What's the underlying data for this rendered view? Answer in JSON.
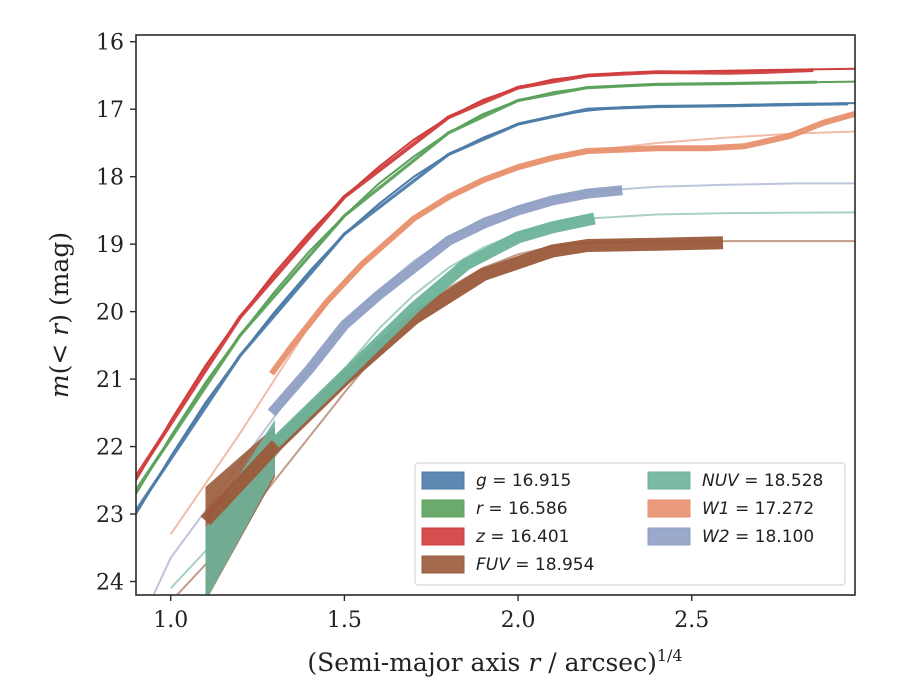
{
  "chart_data": {
    "type": "line",
    "xlabel": "(Semi-major axis r / arcsec)^1/4",
    "ylabel": "m(< r) (mag)",
    "xlim": [
      0.9,
      2.97
    ],
    "ylim": [
      24.2,
      15.9
    ],
    "y_inverted": true,
    "x_ticks": [
      "1.0",
      "1.5",
      "2.0",
      "2.5"
    ],
    "x_tick_values": [
      1.0,
      1.5,
      2.0,
      2.5
    ],
    "y_ticks": [
      "16",
      "17",
      "18",
      "19",
      "20",
      "21",
      "22",
      "23",
      "24"
    ],
    "y_tick_values": [
      16,
      17,
      18,
      19,
      20,
      21,
      22,
      23,
      24
    ],
    "grid": false,
    "legend_position": "lower-right",
    "series": [
      {
        "key": "g",
        "legend_var": "g",
        "legend_val": " = 16.915",
        "color": "#4c7ba8",
        "model": [
          [
            0.9,
            23.0
          ],
          [
            1.0,
            22.15
          ],
          [
            1.1,
            21.35
          ],
          [
            1.2,
            20.65
          ],
          [
            1.3,
            20.0
          ],
          [
            1.4,
            19.4
          ],
          [
            1.5,
            18.85
          ],
          [
            1.6,
            18.4
          ],
          [
            1.7,
            18.0
          ],
          [
            1.8,
            17.67
          ],
          [
            1.9,
            17.42
          ],
          [
            2.0,
            17.22
          ],
          [
            2.1,
            17.1
          ],
          [
            2.2,
            17.02
          ],
          [
            2.3,
            16.97
          ],
          [
            2.5,
            16.95
          ],
          [
            2.7,
            16.93
          ],
          [
            2.97,
            16.91
          ]
        ],
        "data": [
          [
            0.9,
            22.95
          ],
          [
            1.2,
            20.65
          ],
          [
            1.5,
            18.85
          ],
          [
            1.8,
            17.67
          ],
          [
            2.0,
            17.22
          ],
          [
            2.2,
            17.0
          ],
          [
            2.4,
            16.96
          ],
          [
            2.6,
            16.95
          ],
          [
            2.8,
            16.93
          ],
          [
            2.95,
            16.92
          ]
        ],
        "err_width": 1.2
      },
      {
        "key": "r",
        "legend_var": "r",
        "legend_val": " = 16.586",
        "color": "#5ba15b",
        "model": [
          [
            0.9,
            22.7
          ],
          [
            1.0,
            21.85
          ],
          [
            1.1,
            21.05
          ],
          [
            1.2,
            20.35
          ],
          [
            1.3,
            19.7
          ],
          [
            1.4,
            19.1
          ],
          [
            1.5,
            18.58
          ],
          [
            1.6,
            18.1
          ],
          [
            1.7,
            17.7
          ],
          [
            1.8,
            17.35
          ],
          [
            1.9,
            17.07
          ],
          [
            2.0,
            16.87
          ],
          [
            2.1,
            16.75
          ],
          [
            2.2,
            16.68
          ],
          [
            2.3,
            16.65
          ],
          [
            2.5,
            16.63
          ],
          [
            2.7,
            16.61
          ],
          [
            2.97,
            16.59
          ]
        ],
        "data": [
          [
            0.9,
            22.65
          ],
          [
            1.2,
            20.35
          ],
          [
            1.5,
            18.58
          ],
          [
            1.8,
            17.35
          ],
          [
            2.0,
            16.87
          ],
          [
            2.2,
            16.68
          ],
          [
            2.4,
            16.63
          ],
          [
            2.6,
            16.62
          ],
          [
            2.86,
            16.6
          ]
        ],
        "err_width": 1.2
      },
      {
        "key": "z",
        "legend_var": "z",
        "legend_val": " = 16.401",
        "color": "#d13c3c",
        "model": [
          [
            0.9,
            22.5
          ],
          [
            1.0,
            21.62
          ],
          [
            1.1,
            20.8
          ],
          [
            1.2,
            20.08
          ],
          [
            1.3,
            19.42
          ],
          [
            1.4,
            18.83
          ],
          [
            1.5,
            18.3
          ],
          [
            1.6,
            17.85
          ],
          [
            1.7,
            17.45
          ],
          [
            1.8,
            17.12
          ],
          [
            1.9,
            16.86
          ],
          [
            2.0,
            16.68
          ],
          [
            2.1,
            16.56
          ],
          [
            2.2,
            16.5
          ],
          [
            2.3,
            16.46
          ],
          [
            2.5,
            16.44
          ],
          [
            2.7,
            16.42
          ],
          [
            2.97,
            16.4
          ]
        ],
        "data": [
          [
            0.9,
            22.45
          ],
          [
            1.2,
            20.08
          ],
          [
            1.5,
            18.3
          ],
          [
            1.8,
            17.12
          ],
          [
            2.0,
            16.68
          ],
          [
            2.2,
            16.5
          ],
          [
            2.4,
            16.45
          ],
          [
            2.6,
            16.46
          ],
          [
            2.7,
            16.45
          ],
          [
            2.85,
            16.42
          ]
        ],
        "err_width": 1.8
      },
      {
        "key": "FUV",
        "legend_var": "FUV",
        "legend_val": " = 18.954",
        "color": "#9a5a3a",
        "model": [
          [
            1.0,
            24.3
          ],
          [
            1.1,
            23.75
          ],
          [
            1.2,
            23.15
          ],
          [
            1.3,
            22.5
          ],
          [
            1.4,
            21.85
          ],
          [
            1.5,
            21.2
          ],
          [
            1.6,
            20.58
          ],
          [
            1.7,
            20.05
          ],
          [
            1.8,
            19.65
          ],
          [
            1.9,
            19.35
          ],
          [
            2.0,
            19.15
          ],
          [
            2.1,
            19.03
          ],
          [
            2.2,
            18.98
          ],
          [
            2.4,
            18.96
          ],
          [
            2.6,
            18.955
          ],
          [
            2.97,
            18.954
          ]
        ],
        "data": [
          [
            1.1,
            23.1
          ],
          [
            1.3,
            22.0
          ],
          [
            1.5,
            21.0
          ],
          [
            1.7,
            20.1
          ],
          [
            1.9,
            19.45
          ],
          [
            2.1,
            19.1
          ],
          [
            2.2,
            19.02
          ],
          [
            2.4,
            19.0
          ],
          [
            2.59,
            18.98
          ]
        ],
        "err_width": 11,
        "wedge": [
          [
            1.1,
            22.6
          ],
          [
            1.1,
            24.3
          ],
          [
            1.3,
            22.45
          ],
          [
            1.3,
            21.7
          ]
        ]
      },
      {
        "key": "NUV",
        "legend_var": "NUV",
        "legend_val": " = 18.528",
        "color": "#6db39a",
        "model": [
          [
            1.0,
            24.1
          ],
          [
            1.1,
            23.55
          ],
          [
            1.2,
            22.85
          ],
          [
            1.3,
            22.15
          ],
          [
            1.4,
            21.48
          ],
          [
            1.5,
            20.85
          ],
          [
            1.6,
            20.25
          ],
          [
            1.7,
            19.75
          ],
          [
            1.8,
            19.35
          ],
          [
            1.9,
            19.05
          ],
          [
            2.0,
            18.84
          ],
          [
            2.1,
            18.7
          ],
          [
            2.2,
            18.62
          ],
          [
            2.4,
            18.56
          ],
          [
            2.6,
            18.54
          ],
          [
            2.97,
            18.53
          ]
        ],
        "data": [
          [
            1.3,
            21.95
          ],
          [
            1.5,
            20.95
          ],
          [
            1.7,
            19.95
          ],
          [
            1.85,
            19.3
          ],
          [
            2.0,
            18.9
          ],
          [
            2.1,
            18.75
          ],
          [
            2.22,
            18.62
          ]
        ],
        "err_width": 10,
        "wedge": [
          [
            1.1,
            23.2
          ],
          [
            1.1,
            24.3
          ],
          [
            1.3,
            22.4
          ],
          [
            1.3,
            21.6
          ]
        ]
      },
      {
        "key": "W1",
        "legend_var": "W1",
        "legend_val": " = 17.272",
        "color": "#e8906e",
        "model": [
          [
            1.0,
            23.3
          ],
          [
            1.1,
            22.55
          ],
          [
            1.2,
            21.8
          ],
          [
            1.3,
            21.0
          ],
          [
            1.4,
            20.2
          ],
          [
            1.5,
            19.55
          ],
          [
            1.6,
            19.05
          ],
          [
            1.7,
            18.62
          ],
          [
            1.8,
            18.3
          ],
          [
            1.9,
            18.05
          ],
          [
            2.0,
            17.86
          ],
          [
            2.1,
            17.72
          ],
          [
            2.2,
            17.62
          ],
          [
            2.4,
            17.5
          ],
          [
            2.6,
            17.42
          ],
          [
            2.8,
            17.36
          ],
          [
            2.97,
            17.33
          ]
        ],
        "data": [
          [
            1.29,
            20.92
          ],
          [
            1.35,
            20.5
          ],
          [
            1.45,
            19.85
          ],
          [
            1.55,
            19.3
          ],
          [
            1.7,
            18.62
          ],
          [
            1.8,
            18.3
          ],
          [
            1.9,
            18.05
          ],
          [
            2.0,
            17.86
          ],
          [
            2.1,
            17.72
          ],
          [
            2.2,
            17.62
          ],
          [
            2.4,
            17.58
          ],
          [
            2.55,
            17.58
          ],
          [
            2.65,
            17.55
          ],
          [
            2.78,
            17.4
          ],
          [
            2.88,
            17.2
          ],
          [
            2.97,
            17.07
          ]
        ],
        "err_width": 4
      },
      {
        "key": "W2",
        "legend_var": "W2",
        "legend_val": " = 18.100",
        "color": "#8f9fc4",
        "model": [
          [
            0.95,
            24.2
          ],
          [
            1.0,
            23.65
          ],
          [
            1.1,
            22.95
          ],
          [
            1.2,
            22.25
          ],
          [
            1.3,
            21.55
          ],
          [
            1.4,
            20.85
          ],
          [
            1.5,
            20.2
          ],
          [
            1.6,
            19.68
          ],
          [
            1.7,
            19.25
          ],
          [
            1.8,
            18.9
          ],
          [
            1.9,
            18.62
          ],
          [
            2.0,
            18.45
          ],
          [
            2.1,
            18.32
          ],
          [
            2.2,
            18.22
          ],
          [
            2.4,
            18.15
          ],
          [
            2.6,
            18.12
          ],
          [
            2.8,
            18.1
          ],
          [
            2.97,
            18.1
          ]
        ],
        "data": [
          [
            1.29,
            21.5
          ],
          [
            1.4,
            20.85
          ],
          [
            1.5,
            20.2
          ],
          [
            1.6,
            19.75
          ],
          [
            1.7,
            19.35
          ],
          [
            1.8,
            18.95
          ],
          [
            1.9,
            18.7
          ],
          [
            2.0,
            18.5
          ],
          [
            2.1,
            18.35
          ],
          [
            2.2,
            18.25
          ],
          [
            2.3,
            18.2
          ]
        ],
        "err_width": 8
      }
    ]
  }
}
